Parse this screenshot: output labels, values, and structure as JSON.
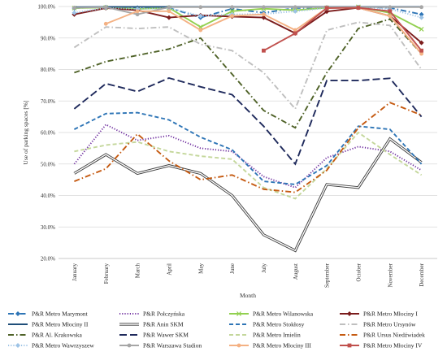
{
  "chart_data": {
    "type": "line",
    "title": "",
    "xlabel": "Month",
    "ylabel": "Use of parking spaces [%]",
    "ylim": [
      20,
      100
    ],
    "y_ticks": [
      "20.0%",
      "30.0%",
      "40.0%",
      "50.0%",
      "60.0%",
      "70.0%",
      "80.0%",
      "90.0%",
      "100.0%"
    ],
    "grid": "horizontal",
    "legend_position": "bottom",
    "categories": [
      "January",
      "February",
      "March",
      "April",
      "May",
      "June",
      "July",
      "August",
      "September",
      "October",
      "November",
      "December"
    ],
    "series": [
      {
        "name": "P&R Metro Marymont",
        "color": "#2e75b6",
        "style": "dashdot",
        "marker": "diamond",
        "values": [
          99.5,
          99.8,
          99.6,
          99.6,
          96.5,
          99.3,
          98.0,
          99.5,
          99.6,
          99.8,
          99.6,
          97.5
        ]
      },
      {
        "name": "P&R Połczyńska",
        "color": "#7030a0",
        "style": "dotted",
        "marker": "none",
        "values": [
          50,
          62.5,
          57.5,
          59,
          55,
          54,
          46,
          42.5,
          52,
          55.5,
          54,
          48
        ]
      },
      {
        "name": "P&R Metro Wilanowska",
        "color": "#92d050",
        "style": "solid",
        "marker": "x",
        "values": [
          99.5,
          99.7,
          99.2,
          99.6,
          93.5,
          98.5,
          99.3,
          98.8,
          99.6,
          99.9,
          98.0,
          92.8
        ]
      },
      {
        "name": "P&R Metro Młociny I",
        "color": "#7b1c1c",
        "style": "solid",
        "marker": "diamond",
        "values": [
          97.5,
          99.5,
          98.8,
          96.5,
          97.2,
          96.8,
          96.5,
          91.5,
          98.4,
          99.6,
          97.0,
          88.5
        ]
      },
      {
        "name": "P&R Metro Młociny II",
        "color": "#1f4e79",
        "style": "solid",
        "marker": "none",
        "values": [
          99.8,
          99.9,
          99.9,
          99.9,
          99.9,
          99.9,
          99.9,
          99.9,
          99.9,
          99.9,
          99.9,
          99.9
        ]
      },
      {
        "name": "P&R Anin SKM",
        "color": "#3a3a3a",
        "style": "double",
        "marker": "none",
        "values": [
          47,
          53,
          47,
          49.5,
          47,
          40,
          27.5,
          22.5,
          43.5,
          42.5,
          58,
          50.5
        ]
      },
      {
        "name": "P&R Metro Stokłosy",
        "color": "#2e75b6",
        "style": "dashed",
        "marker": "none",
        "values": [
          61,
          66,
          66.3,
          64,
          58.5,
          54.5,
          44.5,
          43.5,
          49.5,
          62,
          61,
          50
        ]
      },
      {
        "name": "P&R Metro Ursynów",
        "color": "#bfbfbf",
        "style": "dashdot",
        "marker": "none",
        "values": [
          87,
          93.5,
          93,
          93.5,
          88,
          86,
          79,
          67.5,
          92.5,
          95,
          94,
          80
        ]
      },
      {
        "name": "P&R Al. Krakowska",
        "color": "#4f6228",
        "style": "dashdot",
        "marker": "none",
        "values": [
          79,
          82.5,
          84.5,
          86.5,
          90,
          78.5,
          67,
          61.5,
          79,
          93,
          96,
          85
        ]
      },
      {
        "name": "P&R Wawer SKM",
        "color": "#1f2a5c",
        "style": "longdash",
        "marker": "none",
        "values": [
          67.5,
          75.5,
          73,
          77.3,
          74.5,
          72,
          62,
          50,
          76.5,
          76.5,
          77.2,
          65
        ]
      },
      {
        "name": "P&R Metro Imielin",
        "color": "#c4d79b",
        "style": "dashed",
        "marker": "none",
        "values": [
          54,
          56,
          57,
          54,
          52.5,
          51.5,
          42.5,
          39,
          48.5,
          60,
          53,
          46.5
        ]
      },
      {
        "name": "P&R Ursus Niedźwiadek",
        "color": "#c55a11",
        "style": "dashdot",
        "marker": "none",
        "values": [
          44.5,
          48.5,
          59.5,
          51,
          45,
          46.5,
          42,
          41,
          48,
          61.5,
          69.5,
          65.5
        ]
      },
      {
        "name": "P&R Metro Wawrzyszew",
        "color": "#9dc3e6",
        "style": "dotted",
        "marker": "diamond",
        "values": [
          98,
          99.6,
          99.2,
          99.5,
          97,
          97.5,
          97.6,
          98.5,
          99.5,
          99.7,
          99.2,
          96.5
        ]
      },
      {
        "name": "P&R Warszawa Stadion",
        "color": "#a6a6a6",
        "style": "solid",
        "marker": "circle",
        "values": [
          99.6,
          99.8,
          97.5,
          99.8,
          99.8,
          99.8,
          99.8,
          99.8,
          99.8,
          99.8,
          99.8,
          99.8
        ]
      },
      {
        "name": "P&R Metro Młociny III",
        "color": "#f4b183",
        "style": "solid",
        "marker": "circle",
        "values": [
          null,
          94.5,
          98.5,
          98.5,
          92.5,
          97,
          97.5,
          92.5,
          99.5,
          99.6,
          97,
          85
        ]
      },
      {
        "name": "P&R Metro Młociny IV",
        "color": "#c0504d",
        "style": "solid",
        "marker": "square",
        "values": [
          null,
          null,
          null,
          null,
          null,
          null,
          86,
          91.5,
          99.5,
          99.6,
          98.5,
          86
        ]
      }
    ]
  }
}
